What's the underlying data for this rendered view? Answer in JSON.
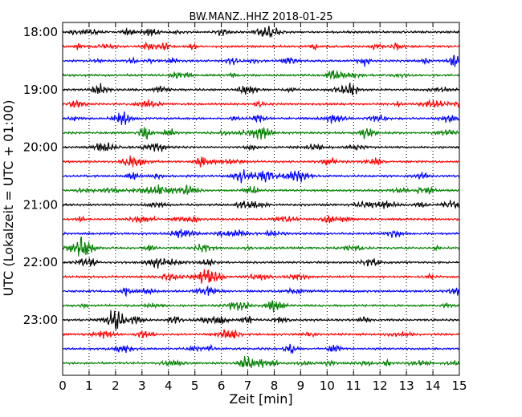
{
  "chart_data": {
    "type": "line",
    "chart_style": "dayplot",
    "title": "BW.MANZ..HHZ 2018-01-25",
    "xlabel": "Zeit  [min]",
    "ylabel": "UTC (Lokalzeit = UTC + 01:00)",
    "xlim": [
      0,
      15
    ],
    "x_ticks": [
      "0",
      "1",
      "2",
      "3",
      "4",
      "5",
      "6",
      "7",
      "8",
      "9",
      "10",
      "11",
      "12",
      "13",
      "14",
      "15"
    ],
    "y_tick_labels": [
      "18:00",
      "19:00",
      "20:00",
      "21:00",
      "22:00",
      "23:00"
    ],
    "row_start_times": [
      "18:00",
      "18:15",
      "18:30",
      "18:45",
      "19:00",
      "19:15",
      "19:30",
      "19:45",
      "20:00",
      "20:15",
      "20:30",
      "20:45",
      "21:00",
      "21:15",
      "21:30",
      "21:45",
      "22:00",
      "22:15",
      "22:30",
      "22:45",
      "23:00",
      "23:15",
      "23:30",
      "23:45"
    ],
    "minutes_per_row": 15,
    "series_colors": [
      "#000000",
      "#ff0000",
      "#0000ff",
      "#008000"
    ],
    "grid": "x-dotted"
  }
}
